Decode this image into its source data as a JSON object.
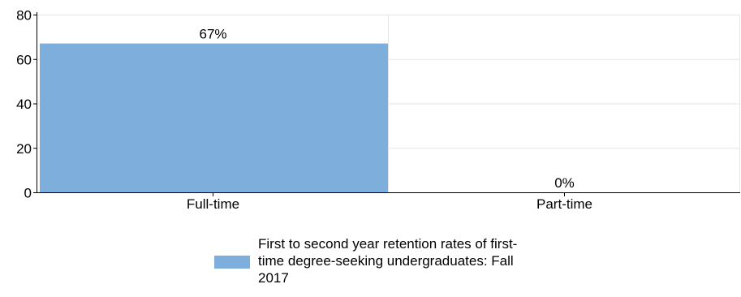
{
  "chart_data": {
    "type": "bar",
    "categories": [
      "Full-time",
      "Part-time"
    ],
    "series": [
      {
        "name": "First to second year retention rates of first-time degree-seeking undergraduates: Fall 2017",
        "values": [
          67,
          0
        ],
        "data_labels": [
          "67%",
          "0%"
        ],
        "color": "#7eaedb"
      }
    ],
    "title": "",
    "xlabel": "",
    "ylabel": "",
    "ylim": [
      0,
      80
    ],
    "yticks": [
      0,
      20,
      40,
      60,
      80
    ],
    "grid": true,
    "legend": "bottom"
  }
}
